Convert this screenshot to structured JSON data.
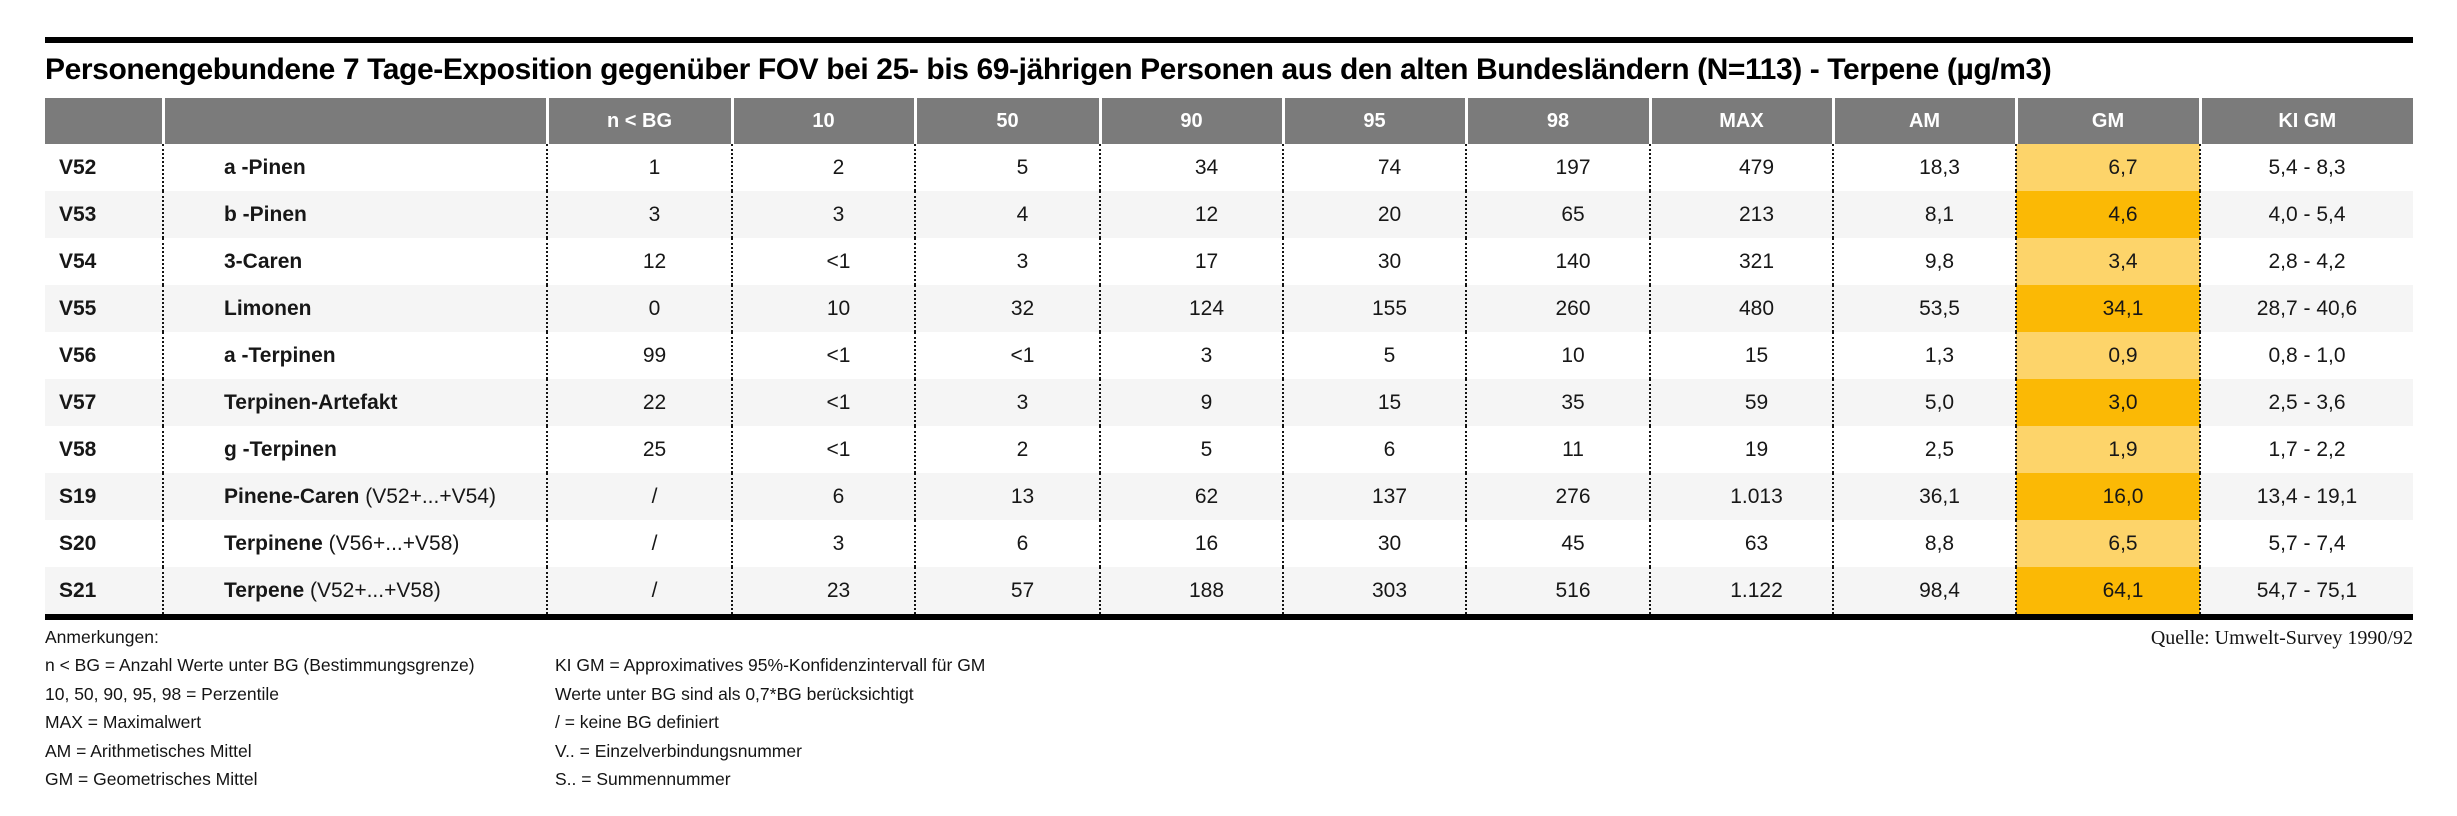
{
  "page": {
    "title": "Personengebundene 7 Tage-Exposition gegenüber FOV bei 25- bis 69-jährigen Personen aus den alten Bundesländern (N=113) - Terpene (µg/m3)",
    "source": "Quelle: Umwelt-Survey 1990/92"
  },
  "colors": {
    "header_bg": "#7B7B7B",
    "row_stripe": "#F5F5F5",
    "gm_highlight_light": "#FDD46A",
    "gm_highlight_dark": "#FBB905",
    "rule": "#000000"
  },
  "table": {
    "columns": [
      {
        "key": "id",
        "label": ""
      },
      {
        "key": "name",
        "label": ""
      },
      {
        "key": "n_bg",
        "label": "n < BG"
      },
      {
        "key": "p10",
        "label": "10"
      },
      {
        "key": "p50",
        "label": "50"
      },
      {
        "key": "p90",
        "label": "90"
      },
      {
        "key": "p95",
        "label": "95"
      },
      {
        "key": "p98",
        "label": "98"
      },
      {
        "key": "max",
        "label": "MAX"
      },
      {
        "key": "am",
        "label": "AM"
      },
      {
        "key": "gm",
        "label": "GM"
      },
      {
        "key": "ki_gm",
        "label": "KI GM"
      }
    ],
    "rows": [
      {
        "id": "V52",
        "name": "a -Pinen",
        "suffix": "",
        "values": [
          "1",
          "2",
          "5",
          "34",
          "74",
          "197",
          "479",
          "18,3",
          "6,7",
          "5,4 - 8,3"
        ]
      },
      {
        "id": "V53",
        "name": "b -Pinen",
        "suffix": "",
        "values": [
          "3",
          "3",
          "4",
          "12",
          "20",
          "65",
          "213",
          "8,1",
          "4,6",
          "4,0 - 5,4"
        ]
      },
      {
        "id": "V54",
        "name": "3-Caren",
        "suffix": "",
        "values": [
          "12",
          "<1",
          "3",
          "17",
          "30",
          "140",
          "321",
          "9,8",
          "3,4",
          "2,8 - 4,2"
        ]
      },
      {
        "id": "V55",
        "name": "Limonen",
        "suffix": "",
        "values": [
          "0",
          "10",
          "32",
          "124",
          "155",
          "260",
          "480",
          "53,5",
          "34,1",
          "28,7 - 40,6"
        ]
      },
      {
        "id": "V56",
        "name": "a -Terpinen",
        "suffix": "",
        "values": [
          "99",
          "<1",
          "<1",
          "3",
          "5",
          "10",
          "15",
          "1,3",
          "0,9",
          "0,8 - 1,0"
        ]
      },
      {
        "id": "V57",
        "name": "Terpinen-Artefakt",
        "suffix": "",
        "values": [
          "22",
          "<1",
          "3",
          "9",
          "15",
          "35",
          "59",
          "5,0",
          "3,0",
          "2,5 - 3,6"
        ]
      },
      {
        "id": "V58",
        "name": "g -Terpinen",
        "suffix": "",
        "values": [
          "25",
          "<1",
          "2",
          "5",
          "6",
          "11",
          "19",
          "2,5",
          "1,9",
          "1,7 - 2,2"
        ]
      },
      {
        "id": "S19",
        "name": "Pinene-Caren",
        "suffix": " (V52+...+V54)",
        "values": [
          "/",
          "6",
          "13",
          "62",
          "137",
          "276",
          "1.013",
          "36,1",
          "16,0",
          "13,4 - 19,1"
        ]
      },
      {
        "id": "S20",
        "name": "Terpinene",
        "suffix": " (V56+...+V58)",
        "values": [
          "/",
          "3",
          "6",
          "16",
          "30",
          "45",
          "63",
          "8,8",
          "6,5",
          "5,7 - 7,4"
        ]
      },
      {
        "id": "S21",
        "name": "Terpene",
        "suffix": " (V52+...+V58)",
        "values": [
          "/",
          "23",
          "57",
          "188",
          "303",
          "516",
          "1.122",
          "98,4",
          "64,1",
          "54,7 - 75,1"
        ]
      }
    ]
  },
  "footnotes": {
    "heading": "Anmerkungen:",
    "left": [
      "n < BG = Anzahl Werte unter BG (Bestimmungsgrenze)",
      "10, 50, 90, 95, 98 = Perzentile",
      "MAX = Maximalwert",
      "AM = Arithmetisches Mittel",
      "GM = Geometrisches Mittel"
    ],
    "right": [
      "KI GM = Approximatives 95%-Konfidenzintervall für GM",
      "Werte unter BG sind als 0,7*BG berücksichtigt",
      "/ = keine BG definiert",
      "V.. = Einzelverbindungsnummer",
      "S.. = Summennummer"
    ]
  }
}
